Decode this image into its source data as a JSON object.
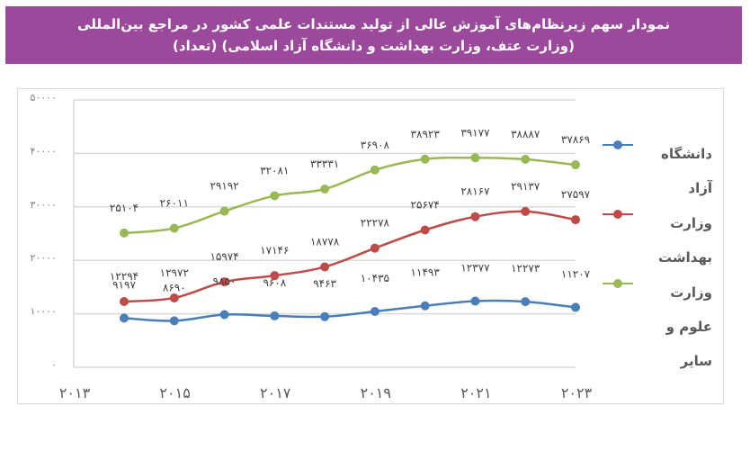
{
  "title": {
    "line1": "نمودار سهم زیرنظام‌های آموزش عالی از تولید مستندات علمی کشور در مراجع بین‌المللی",
    "line2": "(وزارت عتف، وزارت بهداشت و دانشگاه آزاد اسلامی) (تعداد)"
  },
  "colors": {
    "title_bg": "#9b4a9b",
    "azad": "#4a7ebb",
    "health": "#be4b48",
    "science": "#98b954",
    "grid": "#d9d9d9",
    "axis_text": "#595959"
  },
  "legend": [
    {
      "label": "دانشگاه آزاد",
      "color": "#4a7ebb"
    },
    {
      "label": "وزارت بهداشت",
      "color": "#be4b48"
    },
    {
      "label": "وزارت علوم و سایر",
      "color": "#98b954"
    }
  ],
  "chart_data": {
    "type": "line",
    "title": "نمودار سهم زیرنظام‌های آموزش عالی از تولید مستندات علمی کشور در مراجع بین‌المللی (وزارت عتف، وزارت بهداشت و دانشگاه آزاد اسلامی) (تعداد)",
    "x": [
      2014,
      2015,
      2016,
      2017,
      2018,
      2019,
      2020,
      2021,
      2022,
      2023
    ],
    "x_tick_labels": [
      "۲۰۱۳",
      "۲۰۱۵",
      "۲۰۱۷",
      "۲۰۱۹",
      "۲۰۲۱",
      "۲۰۲۳"
    ],
    "y_tick_labels": [
      "۰",
      "۱۰۰۰۰",
      "۲۰۰۰۰",
      "۳۰۰۰۰",
      "۴۰۰۰۰",
      "۵۰۰۰۰"
    ],
    "ylim": [
      0,
      50000
    ],
    "grid": true,
    "legend_position": "right",
    "xlabel": "",
    "ylabel": "",
    "series": [
      {
        "name": "دانشگاه آزاد",
        "color": "#4a7ebb",
        "values": [
          9197,
          8690,
          9850,
          9608,
          9463,
          10435,
          11493,
          12377,
          12273,
          11207
        ],
        "labels": [
          "۹۱۹۷",
          "۸۶۹۰",
          "۹۸۵۰",
          "۹۶۰۸",
          "۹۴۶۳",
          "۱۰۴۳۵",
          "۱۱۴۹۳",
          "۱۲۳۷۷",
          "۱۲۲۷۳",
          "۱۱۲۰۷"
        ]
      },
      {
        "name": "وزارت بهداشت",
        "color": "#be4b48",
        "values": [
          12294,
          12972,
          15974,
          17146,
          18778,
          22278,
          25674,
          28167,
          29137,
          27597
        ],
        "labels": [
          "۱۲۲۹۴",
          "۱۲۹۷۲",
          "۱۵۹۷۴",
          "۱۷۱۴۶",
          "۱۸۷۷۸",
          "۲۲۲۷۸",
          "۲۵۶۷۴",
          "۲۸۱۶۷",
          "۲۹۱۳۷",
          "۲۷۵۹۷"
        ]
      },
      {
        "name": "وزارت علوم و سایر",
        "color": "#98b954",
        "values": [
          25104,
          26011,
          29192,
          32081,
          33331,
          36908,
          38923,
          39177,
          38887,
          37869
        ],
        "labels": [
          "۲۵۱۰۴",
          "۲۶۰۱۱",
          "۲۹۱۹۲",
          "۳۲۰۸۱",
          "۳۳۳۳۱",
          "۳۶۹۰۸",
          "۳۸۹۲۳",
          "۳۹۱۷۷",
          "۳۸۸۸۷",
          "۳۷۸۶۹"
        ]
      }
    ]
  }
}
